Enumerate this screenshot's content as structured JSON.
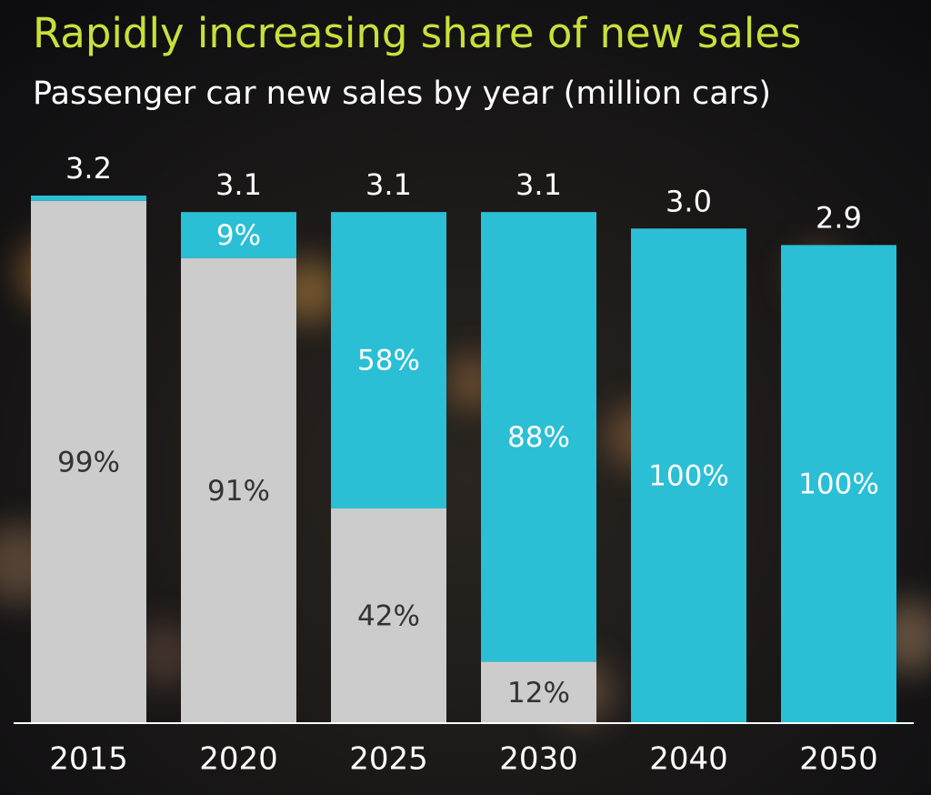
{
  "chart_data": {
    "type": "stacked_bar",
    "title": "Rapidly increasing share of new sales",
    "subtitle": "Passenger car new sales by year (million cars)",
    "categories": [
      "2015",
      "2020",
      "2025",
      "2030",
      "2040",
      "2050"
    ],
    "totals": {
      "values": [
        3.2,
        3.1,
        3.1,
        3.1,
        3.0,
        2.9
      ],
      "value_labels": [
        "3.2",
        "3.1",
        "3.1",
        "3.1",
        "3.0",
        "2.9"
      ]
    },
    "series": [
      {
        "color": "#cccccc",
        "label_color": "#333333",
        "values": [
          99,
          91,
          42,
          12,
          0,
          0
        ],
        "value_labels": [
          "99%",
          "91%",
          "42%",
          "12%",
          null,
          null
        ]
      },
      {
        "color": "#2bbfd5",
        "label_color": "#ffffff",
        "values": [
          1,
          9,
          58,
          88,
          100,
          100
        ],
        "value_labels": [
          null,
          "9%",
          "58%",
          "88%",
          "100%",
          "100%"
        ]
      }
    ]
  }
}
